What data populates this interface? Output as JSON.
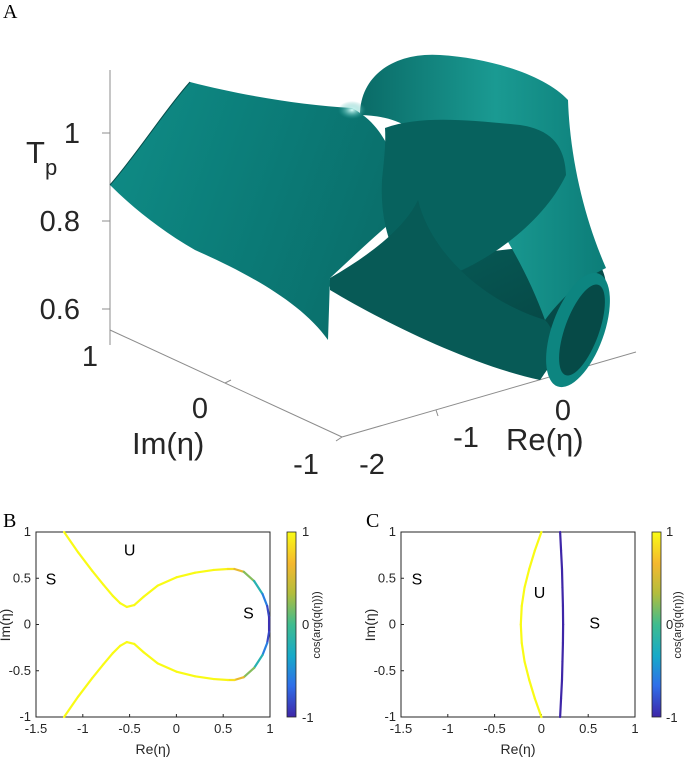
{
  "colors": {
    "surface": "#0b7a76",
    "surface_dark": "#064d4a",
    "surface_light": "#2ea9a1",
    "colormap": [
      "#3e26a8",
      "#2f6fe9",
      "#17aac9",
      "#3fbc8f",
      "#b3bd3c",
      "#f5b82e",
      "#f9fb15"
    ]
  },
  "panels": {
    "A": {
      "letter": "A"
    },
    "B": {
      "letter": "B"
    },
    "C": {
      "letter": "C"
    }
  },
  "chart_data": [
    {
      "type": "surface3d",
      "panel": "A",
      "zlabel": "T",
      "zlabel_sub": "p",
      "xlabel": "Re(η)",
      "ylabel": "Im(η)",
      "ztick_labels": [
        "1",
        "0.8",
        "0.6"
      ],
      "xtick_labels": [
        "-2",
        "-1",
        "0"
      ],
      "ytick_labels": [
        "1",
        "0",
        "-1"
      ],
      "zlim": [
        0.55,
        1.05
      ],
      "xlim": [
        -2,
        0.5
      ],
      "ylim": [
        -1,
        1
      ]
    },
    {
      "type": "line",
      "panel": "B",
      "xlabel": "Re(η)",
      "ylabel": "Im(η)",
      "xlim": [
        -1.5,
        1
      ],
      "ylim": [
        -1,
        1
      ],
      "xtick_labels": [
        "-1.5",
        "-1",
        "-0.5",
        "0",
        "0.5",
        "1"
      ],
      "ytick_labels": [
        "1",
        "0.5",
        "0",
        "-0.5",
        "-1"
      ],
      "colorbar": {
        "label": "cos(arg(q(η)))",
        "ticks": [
          "1",
          "0",
          "-1"
        ],
        "range": [
          -1,
          1
        ]
      },
      "regions": [
        {
          "text": "S",
          "x": -1.34,
          "y": 0.5
        },
        {
          "text": "U",
          "x": -0.5,
          "y": 0.81
        },
        {
          "text": "S",
          "x": 0.77,
          "y": 0.13
        }
      ],
      "series": [
        {
          "x": [
            -1.2,
            -1.05,
            -0.9,
            -0.78,
            -0.68,
            -0.6,
            -0.53,
            -0.45,
            -0.35,
            -0.2,
            0.0,
            0.2,
            0.4,
            0.55,
            0.62,
            0.72,
            0.83,
            0.92,
            0.97,
            0.99,
            0.99,
            0.97,
            0.92,
            0.83,
            0.72,
            0.62,
            0.55,
            0.4,
            0.2,
            0.0,
            -0.2,
            -0.35,
            -0.45,
            -0.53,
            -0.6,
            -0.68,
            -0.78,
            -0.9,
            -1.05,
            -1.2
          ],
          "y": [
            1.0,
            0.78,
            0.58,
            0.43,
            0.31,
            0.23,
            0.19,
            0.21,
            0.3,
            0.42,
            0.51,
            0.56,
            0.59,
            0.6,
            0.6,
            0.57,
            0.47,
            0.33,
            0.2,
            0.08,
            -0.08,
            -0.2,
            -0.33,
            -0.47,
            -0.57,
            -0.6,
            -0.6,
            -0.59,
            -0.56,
            -0.51,
            -0.42,
            -0.3,
            -0.21,
            -0.19,
            -0.23,
            -0.31,
            -0.43,
            -0.58,
            -0.78,
            -1.0
          ],
          "color_value": [
            1,
            1,
            1,
            1,
            1,
            1,
            1,
            1,
            1,
            1,
            1,
            1,
            1,
            0.95,
            0.8,
            0.4,
            0.0,
            -0.4,
            -0.75,
            -0.95,
            -0.95,
            -0.75,
            -0.4,
            0.0,
            0.4,
            0.8,
            0.95,
            1,
            1,
            1,
            1,
            1,
            1,
            1,
            1,
            1,
            1,
            1,
            1,
            1
          ]
        }
      ]
    },
    {
      "type": "line",
      "panel": "C",
      "xlabel": "Re(η)",
      "ylabel": "Im(η)",
      "xlim": [
        -1.5,
        1
      ],
      "ylim": [
        -1,
        1
      ],
      "xtick_labels": [
        "-1.5",
        "-1",
        "-0.5",
        "0",
        "0.5",
        "1"
      ],
      "ytick_labels": [
        "1",
        "0.5",
        "0",
        "-0.5",
        "-1"
      ],
      "colorbar": {
        "label": "cos(arg(q(η)))",
        "ticks": [
          "1",
          "0",
          "-1"
        ],
        "range": [
          -1,
          1
        ]
      },
      "regions": [
        {
          "text": "S",
          "x": -1.33,
          "y": 0.5
        },
        {
          "text": "U",
          "x": -0.02,
          "y": 0.35
        },
        {
          "text": "S",
          "x": 0.57,
          "y": 0.02
        }
      ],
      "series": [
        {
          "x": [
            0.0,
            -0.07,
            -0.13,
            -0.18,
            -0.21,
            -0.22,
            -0.21,
            -0.18,
            -0.13,
            -0.07,
            0.0
          ],
          "y": [
            1.0,
            0.8,
            0.6,
            0.4,
            0.2,
            0.0,
            -0.2,
            -0.4,
            -0.6,
            -0.8,
            -1.0
          ],
          "color_value": 1
        },
        {
          "x": [
            0.2,
            0.21,
            0.22,
            0.225,
            0.23,
            0.232,
            0.23,
            0.225,
            0.22,
            0.21,
            0.2
          ],
          "y": [
            1.0,
            0.8,
            0.6,
            0.4,
            0.2,
            0.0,
            -0.2,
            -0.4,
            -0.6,
            -0.8,
            -1.0
          ],
          "color_value": -1
        }
      ]
    }
  ]
}
